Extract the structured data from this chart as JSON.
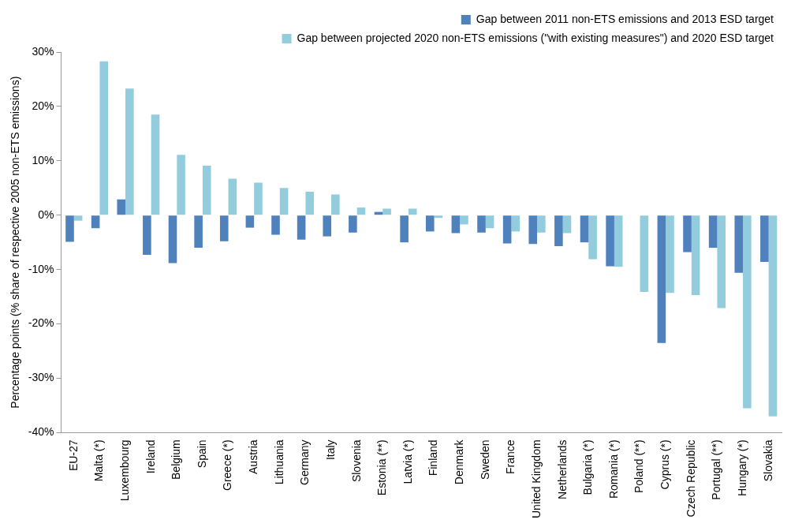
{
  "chart_data": {
    "type": "bar",
    "ylabel": "Percentage points (% share of respective 2005 non-ETS emissions)",
    "categories": [
      "EU-27",
      "Malta (*)",
      "Luxembourg",
      "Ireland",
      "Belgium",
      "Spain",
      "Greece (*)",
      "Austria",
      "Lithuania",
      "Germany",
      "Italy",
      "Slovenia",
      "Estonia (**)",
      "Latvia (*)",
      "Finland",
      "Denmark",
      "Sweden",
      "France",
      "United Kingdom",
      "Netherlands",
      "Bulgaria (*)",
      "Romania (*)",
      "Poland (**)",
      "Cyprus (*)",
      "Czech Republic",
      "Portugal (**)",
      "Hungary (*)",
      "Slovakia"
    ],
    "series": [
      {
        "name": "Gap between 2011 non-ETS emissions and 2013 ESD target",
        "color": "#4f81bd",
        "values": [
          -4.9,
          -2.4,
          2.9,
          -7.3,
          -8.8,
          -6.0,
          -4.8,
          -2.3,
          -3.6,
          -4.5,
          -3.9,
          -3.2,
          0.6,
          -5.0,
          -3.0,
          -3.3,
          -3.2,
          -5.2,
          -5.3,
          -5.7,
          -5.0,
          -9.4,
          null,
          -23.5,
          -6.8,
          -6.0,
          -10.6,
          -8.6
        ]
      },
      {
        "name": "Gap between projected 2020 non-ETS emissions (\"with existing measures\") and 2020 ESD target",
        "color": "#93cddd",
        "values": [
          -1.0,
          28.3,
          23.3,
          18.5,
          11.1,
          9.1,
          6.7,
          6.0,
          5.0,
          4.3,
          3.8,
          1.4,
          1.2,
          1.2,
          -0.5,
          -1.7,
          -2.4,
          -3.0,
          -3.2,
          -3.3,
          -8.1,
          -9.5,
          -14.1,
          -14.3,
          -14.7,
          -17.1,
          -35.5,
          -37.0
        ]
      }
    ],
    "ylim": [
      -40,
      30
    ],
    "yticks": [
      {
        "value": -40,
        "label": "-40%"
      },
      {
        "value": -30,
        "label": "-30%"
      },
      {
        "value": -20,
        "label": "-20%"
      },
      {
        "value": -10,
        "label": "-10%"
      },
      {
        "value": 0,
        "label": "0%"
      },
      {
        "value": 10,
        "label": "10%"
      },
      {
        "value": 20,
        "label": "20%"
      },
      {
        "value": 30,
        "label": "30%"
      }
    ],
    "grid": false,
    "legend": "top right"
  }
}
